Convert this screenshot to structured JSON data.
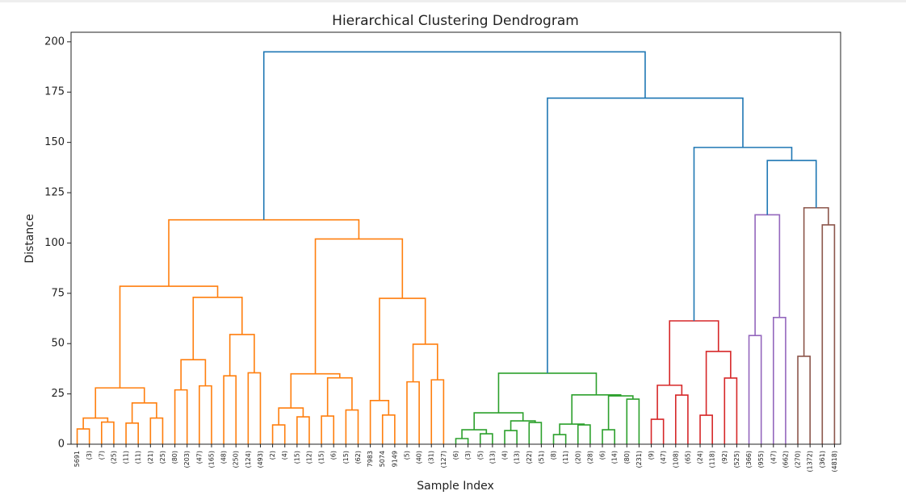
{
  "chart_data": {
    "type": "dendrogram",
    "title": "Hierarchical Clustering Dendrogram",
    "x_label": "Sample Index",
    "y_label": "Distance",
    "ylim": [
      0,
      204.75
    ],
    "yticks": [
      0,
      25,
      50,
      75,
      100,
      125,
      150,
      175,
      200
    ],
    "tree": {
      "height": 195,
      "color": "#1f77b4",
      "children": [
        {
          "height": 111.5,
          "color": "#ff7f0e",
          "children": [
            {
              "height": 78.5,
              "color": "#ff7f0e",
              "children": [
                {
                  "height": 28,
                  "color": "#ff7f0e",
                  "children": [
                    {
                      "height": 13,
                      "color": "#ff7f0e",
                      "children": [
                        {
                          "height": 7.6,
                          "color": "#ff7f0e",
                          "children": [
                            "5691",
                            "(3)"
                          ]
                        },
                        {
                          "height": 11,
                          "color": "#ff7f0e",
                          "children": [
                            "(7)",
                            "(25)"
                          ]
                        }
                      ]
                    },
                    {
                      "height": 20.5,
                      "color": "#ff7f0e",
                      "children": [
                        {
                          "height": 10.5,
                          "color": "#ff7f0e",
                          "children": [
                            "(11)",
                            "(11)"
                          ]
                        },
                        {
                          "height": 13,
                          "color": "#ff7f0e",
                          "children": [
                            "(21)",
                            "(25)"
                          ]
                        }
                      ]
                    }
                  ]
                },
                {
                  "height": 73,
                  "color": "#ff7f0e",
                  "children": [
                    {
                      "height": 42,
                      "color": "#ff7f0e",
                      "children": [
                        {
                          "height": 27,
                          "color": "#ff7f0e",
                          "children": [
                            "(80)",
                            "(203)"
                          ]
                        },
                        {
                          "height": 29,
                          "color": "#ff7f0e",
                          "children": [
                            "(47)",
                            "(165)"
                          ]
                        }
                      ]
                    },
                    {
                      "height": 54.5,
                      "color": "#ff7f0e",
                      "children": [
                        {
                          "height": 34,
                          "color": "#ff7f0e",
                          "children": [
                            "(48)",
                            "(250)"
                          ]
                        },
                        {
                          "height": 35.5,
                          "color": "#ff7f0e",
                          "children": [
                            "(124)",
                            "(493)"
                          ]
                        }
                      ]
                    }
                  ]
                }
              ]
            },
            {
              "height": 102,
              "color": "#ff7f0e",
              "children": [
                {
                  "height": 35,
                  "color": "#ff7f0e",
                  "children": [
                    {
                      "height": 18,
                      "color": "#ff7f0e",
                      "children": [
                        {
                          "height": 9.6,
                          "color": "#ff7f0e",
                          "children": [
                            "(2)",
                            "(4)"
                          ]
                        },
                        {
                          "height": 13.6,
                          "color": "#ff7f0e",
                          "children": [
                            "(15)",
                            "(12)"
                          ]
                        }
                      ]
                    },
                    {
                      "height": 33,
                      "color": "#ff7f0e",
                      "children": [
                        {
                          "height": 14,
                          "color": "#ff7f0e",
                          "children": [
                            "(15)",
                            "(6)"
                          ]
                        },
                        {
                          "height": 17,
                          "color": "#ff7f0e",
                          "children": [
                            "(15)",
                            "(62)"
                          ]
                        }
                      ]
                    }
                  ]
                },
                {
                  "height": 72.5,
                  "color": "#ff7f0e",
                  "children": [
                    {
                      "height": 21.7,
                      "color": "#ff7f0e",
                      "children": [
                        "7983",
                        {
                          "height": 14.5,
                          "color": "#ff7f0e",
                          "children": [
                            "5074",
                            "9149"
                          ]
                        }
                      ]
                    },
                    {
                      "height": 49.7,
                      "color": "#ff7f0e",
                      "children": [
                        {
                          "height": 31,
                          "color": "#ff7f0e",
                          "children": [
                            "(5)",
                            "(40)"
                          ]
                        },
                        {
                          "height": 32,
                          "color": "#ff7f0e",
                          "children": [
                            "(31)",
                            "(127)"
                          ]
                        }
                      ]
                    }
                  ]
                }
              ]
            }
          ]
        },
        {
          "height": 172,
          "color": "#1f77b4",
          "children": [
            {
              "height": 35.3,
              "color": "#2ca02c",
              "children": [
                {
                  "height": 15.6,
                  "color": "#2ca02c",
                  "children": [
                    {
                      "height": 7.2,
                      "color": "#2ca02c",
                      "children": [
                        {
                          "height": 2.8,
                          "color": "#2ca02c",
                          "children": [
                            "(6)",
                            "(3)"
                          ]
                        },
                        {
                          "height": 5.2,
                          "color": "#2ca02c",
                          "children": [
                            "(5)",
                            "(13)"
                          ]
                        }
                      ]
                    },
                    {
                      "height": 11.6,
                      "color": "#2ca02c",
                      "children": [
                        {
                          "height": 6.8,
                          "color": "#2ca02c",
                          "children": [
                            "(4)",
                            "(13)"
                          ]
                        },
                        {
                          "height": 10.8,
                          "color": "#2ca02c",
                          "children": [
                            "(22)",
                            "(51)"
                          ]
                        }
                      ]
                    }
                  ]
                },
                {
                  "height": 24.5,
                  "color": "#2ca02c",
                  "children": [
                    {
                      "height": 10,
                      "color": "#2ca02c",
                      "children": [
                        {
                          "height": 4.8,
                          "color": "#2ca02c",
                          "children": [
                            "(8)",
                            "(11)"
                          ]
                        },
                        {
                          "height": 9.6,
                          "color": "#2ca02c",
                          "children": [
                            "(20)",
                            "(28)"
                          ]
                        }
                      ]
                    },
                    {
                      "height": 24,
                      "color": "#2ca02c",
                      "children": [
                        {
                          "height": 7.2,
                          "color": "#2ca02c",
                          "children": [
                            "(6)",
                            "(14)"
                          ]
                        },
                        {
                          "height": 22.4,
                          "color": "#2ca02c",
                          "children": [
                            "(80)",
                            "(231)"
                          ]
                        }
                      ]
                    }
                  ]
                }
              ]
            },
            {
              "height": 147.5,
              "color": "#1f77b4",
              "children": [
                {
                  "height": 61.3,
                  "color": "#d62728",
                  "children": [
                    {
                      "height": 29.3,
                      "color": "#d62728",
                      "children": [
                        {
                          "height": 12.4,
                          "color": "#d62728",
                          "children": [
                            "(9)",
                            "(47)"
                          ]
                        },
                        {
                          "height": 24.4,
                          "color": "#d62728",
                          "children": [
                            "(108)",
                            "(65)"
                          ]
                        }
                      ]
                    },
                    {
                      "height": 46.1,
                      "color": "#d62728",
                      "children": [
                        {
                          "height": 14.4,
                          "color": "#d62728",
                          "children": [
                            "(24)",
                            "(118)"
                          ]
                        },
                        {
                          "height": 32.9,
                          "color": "#d62728",
                          "children": [
                            "(92)",
                            "(525)"
                          ]
                        }
                      ]
                    }
                  ]
                },
                {
                  "height": 141,
                  "color": "#1f77b4",
                  "children": [
                    {
                      "height": 114,
                      "color": "#9467bd",
                      "children": [
                        {
                          "height": 54,
                          "color": "#9467bd",
                          "children": [
                            "(366)",
                            "(955)"
                          ]
                        },
                        {
                          "height": 63,
                          "color": "#9467bd",
                          "children": [
                            "(47)",
                            "(662)"
                          ]
                        }
                      ]
                    },
                    {
                      "height": 117.5,
                      "color": "#8c564b",
                      "children": [
                        {
                          "height": 43.7,
                          "color": "#8c564b",
                          "children": [
                            "(270)",
                            "(1372)"
                          ]
                        },
                        {
                          "height": 109,
                          "color": "#8c564b",
                          "children": [
                            "(361)",
                            "(4818)"
                          ]
                        }
                      ]
                    }
                  ]
                }
              ]
            }
          ]
        }
      ]
    }
  }
}
